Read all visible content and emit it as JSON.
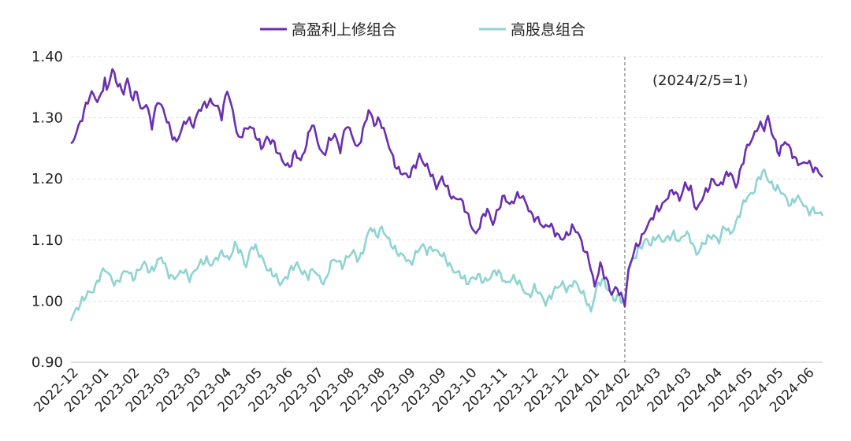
{
  "chart_data": {
    "type": "line",
    "title": "",
    "xlabel": "",
    "ylabel": "",
    "ylim": [
      0.9,
      1.4
    ],
    "yticks": [
      "0.90",
      "1.00",
      "1.10",
      "1.20",
      "1.30",
      "1.40"
    ],
    "grid": true,
    "legend_position": "top",
    "x_count": 400,
    "divider_index": 294,
    "annotation": "(2024/2/5=1)",
    "xtick_labels": [
      "2022-12",
      "2023-01",
      "2023-02",
      "2023-03",
      "2023-03",
      "2023-04",
      "2023-05",
      "2023-06",
      "2023-07",
      "2023-08",
      "2023-08",
      "2023-09",
      "2023-09",
      "2023-10",
      "2023-11",
      "2023-12",
      "2023-12",
      "2024-01",
      "2024-02",
      "2024-03",
      "2024-03",
      "2024-04",
      "2024-05",
      "2024-05",
      "2024-06"
    ],
    "series": [
      {
        "name": "高盈利上修组合",
        "color": "#6a2fb0",
        "keypoints": [
          [
            0,
            1.25
          ],
          [
            3,
            1.28
          ],
          [
            7,
            1.31
          ],
          [
            11,
            1.34
          ],
          [
            15,
            1.33
          ],
          [
            18,
            1.36
          ],
          [
            19,
            1.34
          ],
          [
            22,
            1.38
          ],
          [
            26,
            1.35
          ],
          [
            28,
            1.34
          ],
          [
            30,
            1.36
          ],
          [
            33,
            1.33
          ],
          [
            35,
            1.35
          ],
          [
            37,
            1.31
          ],
          [
            40,
            1.32
          ],
          [
            43,
            1.29
          ],
          [
            46,
            1.33
          ],
          [
            49,
            1.31
          ],
          [
            53,
            1.28
          ],
          [
            56,
            1.26
          ],
          [
            59,
            1.28
          ],
          [
            62,
            1.3
          ],
          [
            65,
            1.29
          ],
          [
            68,
            1.31
          ],
          [
            71,
            1.32
          ],
          [
            74,
            1.33
          ],
          [
            77,
            1.32
          ],
          [
            80,
            1.3
          ],
          [
            83,
            1.35
          ],
          [
            86,
            1.31
          ],
          [
            89,
            1.26
          ],
          [
            92,
            1.28
          ],
          [
            95,
            1.29
          ],
          [
            98,
            1.27
          ],
          [
            101,
            1.25
          ],
          [
            104,
            1.27
          ],
          [
            107,
            1.26
          ],
          [
            110,
            1.24
          ],
          [
            113,
            1.23
          ],
          [
            116,
            1.22
          ],
          [
            119,
            1.24
          ],
          [
            122,
            1.23
          ],
          [
            125,
            1.26
          ],
          [
            128,
            1.29
          ],
          [
            131,
            1.26
          ],
          [
            134,
            1.24
          ],
          [
            137,
            1.26
          ],
          [
            140,
            1.27
          ],
          [
            143,
            1.25
          ],
          [
            146,
            1.29
          ],
          [
            149,
            1.27
          ],
          [
            152,
            1.25
          ],
          [
            155,
            1.28
          ],
          [
            158,
            1.31
          ],
          [
            161,
            1.29
          ],
          [
            164,
            1.3
          ],
          [
            167,
            1.27
          ],
          [
            170,
            1.24
          ],
          [
            173,
            1.22
          ],
          [
            176,
            1.21
          ],
          [
            179,
            1.2
          ],
          [
            182,
            1.22
          ],
          [
            185,
            1.24
          ],
          [
            188,
            1.22
          ],
          [
            191,
            1.21
          ],
          [
            194,
            1.19
          ],
          [
            197,
            1.2
          ],
          [
            200,
            1.18
          ],
          [
            203,
            1.17
          ],
          [
            206,
            1.17
          ],
          [
            209,
            1.15
          ],
          [
            212,
            1.13
          ],
          [
            215,
            1.11
          ],
          [
            218,
            1.13
          ],
          [
            221,
            1.15
          ],
          [
            224,
            1.13
          ],
          [
            227,
            1.15
          ],
          [
            230,
            1.17
          ],
          [
            233,
            1.16
          ],
          [
            236,
            1.17
          ],
          [
            239,
            1.17
          ],
          [
            242,
            1.16
          ],
          [
            245,
            1.14
          ],
          [
            248,
            1.13
          ],
          [
            251,
            1.12
          ],
          [
            254,
            1.13
          ],
          [
            257,
            1.11
          ],
          [
            260,
            1.1
          ],
          [
            263,
            1.11
          ],
          [
            266,
            1.12
          ],
          [
            269,
            1.11
          ],
          [
            272,
            1.09
          ],
          [
            275,
            1.07
          ],
          [
            278,
            1.02
          ],
          [
            281,
            1.06
          ],
          [
            284,
            1.04
          ],
          [
            287,
            1.01
          ],
          [
            290,
            1.02
          ],
          [
            294,
            1.0
          ],
          [
            296,
            1.05
          ],
          [
            299,
            1.08
          ],
          [
            302,
            1.1
          ],
          [
            305,
            1.12
          ],
          [
            308,
            1.13
          ],
          [
            311,
            1.15
          ],
          [
            314,
            1.16
          ],
          [
            317,
            1.17
          ],
          [
            320,
            1.18
          ],
          [
            323,
            1.17
          ],
          [
            326,
            1.19
          ],
          [
            329,
            1.18
          ],
          [
            332,
            1.15
          ],
          [
            335,
            1.17
          ],
          [
            338,
            1.18
          ],
          [
            341,
            1.2
          ],
          [
            344,
            1.19
          ],
          [
            347,
            1.2
          ],
          [
            350,
            1.21
          ],
          [
            353,
            1.19
          ],
          [
            356,
            1.22
          ],
          [
            359,
            1.25
          ],
          [
            362,
            1.27
          ],
          [
            365,
            1.29
          ],
          [
            368,
            1.28
          ],
          [
            370,
            1.3
          ],
          [
            373,
            1.27
          ],
          [
            376,
            1.24
          ],
          [
            379,
            1.26
          ],
          [
            382,
            1.25
          ],
          [
            385,
            1.23
          ],
          [
            388,
            1.22
          ],
          [
            391,
            1.23
          ],
          [
            394,
            1.22
          ],
          [
            397,
            1.21
          ],
          [
            399,
            1.2
          ]
        ]
      },
      {
        "name": "高股息组合",
        "color": "#8fd4d2",
        "keypoints": [
          [
            0,
            0.97
          ],
          [
            3,
            0.99
          ],
          [
            6,
            1.0
          ],
          [
            9,
            1.01
          ],
          [
            12,
            1.02
          ],
          [
            15,
            1.04
          ],
          [
            18,
            1.05
          ],
          [
            21,
            1.04
          ],
          [
            24,
            1.03
          ],
          [
            27,
            1.04
          ],
          [
            30,
            1.05
          ],
          [
            33,
            1.04
          ],
          [
            36,
            1.05
          ],
          [
            39,
            1.06
          ],
          [
            42,
            1.05
          ],
          [
            45,
            1.06
          ],
          [
            48,
            1.07
          ],
          [
            51,
            1.05
          ],
          [
            54,
            1.04
          ],
          [
            57,
            1.04
          ],
          [
            60,
            1.05
          ],
          [
            63,
            1.04
          ],
          [
            66,
            1.05
          ],
          [
            69,
            1.06
          ],
          [
            72,
            1.07
          ],
          [
            75,
            1.06
          ],
          [
            78,
            1.07
          ],
          [
            81,
            1.08
          ],
          [
            84,
            1.07
          ],
          [
            87,
            1.09
          ],
          [
            90,
            1.08
          ],
          [
            93,
            1.06
          ],
          [
            96,
            1.09
          ],
          [
            99,
            1.08
          ],
          [
            102,
            1.07
          ],
          [
            105,
            1.05
          ],
          [
            108,
            1.04
          ],
          [
            111,
            1.03
          ],
          [
            114,
            1.04
          ],
          [
            117,
            1.05
          ],
          [
            120,
            1.06
          ],
          [
            123,
            1.05
          ],
          [
            126,
            1.04
          ],
          [
            129,
            1.05
          ],
          [
            132,
            1.04
          ],
          [
            135,
            1.03
          ],
          [
            138,
            1.06
          ],
          [
            141,
            1.07
          ],
          [
            144,
            1.06
          ],
          [
            147,
            1.07
          ],
          [
            150,
            1.08
          ],
          [
            153,
            1.07
          ],
          [
            156,
            1.09
          ],
          [
            159,
            1.12
          ],
          [
            162,
            1.11
          ],
          [
            165,
            1.12
          ],
          [
            168,
            1.1
          ],
          [
            171,
            1.09
          ],
          [
            174,
            1.08
          ],
          [
            177,
            1.07
          ],
          [
            180,
            1.06
          ],
          [
            183,
            1.08
          ],
          [
            186,
            1.09
          ],
          [
            189,
            1.08
          ],
          [
            192,
            1.09
          ],
          [
            195,
            1.08
          ],
          [
            198,
            1.07
          ],
          [
            201,
            1.06
          ],
          [
            204,
            1.05
          ],
          [
            207,
            1.04
          ],
          [
            210,
            1.03
          ],
          [
            213,
            1.04
          ],
          [
            216,
            1.04
          ],
          [
            219,
            1.03
          ],
          [
            222,
            1.04
          ],
          [
            225,
            1.05
          ],
          [
            228,
            1.04
          ],
          [
            231,
            1.03
          ],
          [
            234,
            1.04
          ],
          [
            237,
            1.03
          ],
          [
            240,
            1.02
          ],
          [
            243,
            1.01
          ],
          [
            246,
            1.02
          ],
          [
            249,
            1.01
          ],
          [
            252,
            1.0
          ],
          [
            255,
            1.01
          ],
          [
            258,
            1.02
          ],
          [
            261,
            1.03
          ],
          [
            264,
            1.02
          ],
          [
            267,
            1.03
          ],
          [
            270,
            1.02
          ],
          [
            273,
            1.01
          ],
          [
            276,
            0.98
          ],
          [
            279,
            1.02
          ],
          [
            282,
            1.04
          ],
          [
            285,
            1.02
          ],
          [
            288,
            1.0
          ],
          [
            291,
            1.01
          ],
          [
            294,
            1.0
          ],
          [
            296,
            1.05
          ],
          [
            299,
            1.07
          ],
          [
            302,
            1.09
          ],
          [
            305,
            1.1
          ],
          [
            308,
            1.09
          ],
          [
            311,
            1.11
          ],
          [
            314,
            1.1
          ],
          [
            317,
            1.1
          ],
          [
            320,
            1.11
          ],
          [
            323,
            1.1
          ],
          [
            326,
            1.11
          ],
          [
            329,
            1.1
          ],
          [
            332,
            1.08
          ],
          [
            335,
            1.09
          ],
          [
            338,
            1.1
          ],
          [
            341,
            1.11
          ],
          [
            344,
            1.1
          ],
          [
            347,
            1.12
          ],
          [
            350,
            1.11
          ],
          [
            353,
            1.13
          ],
          [
            356,
            1.15
          ],
          [
            359,
            1.17
          ],
          [
            362,
            1.18
          ],
          [
            365,
            1.2
          ],
          [
            368,
            1.21
          ],
          [
            370,
            1.2
          ],
          [
            373,
            1.19
          ],
          [
            376,
            1.18
          ],
          [
            379,
            1.17
          ],
          [
            382,
            1.16
          ],
          [
            385,
            1.17
          ],
          [
            388,
            1.16
          ],
          [
            391,
            1.15
          ],
          [
            394,
            1.15
          ],
          [
            397,
            1.14
          ],
          [
            399,
            1.14
          ]
        ]
      }
    ]
  }
}
